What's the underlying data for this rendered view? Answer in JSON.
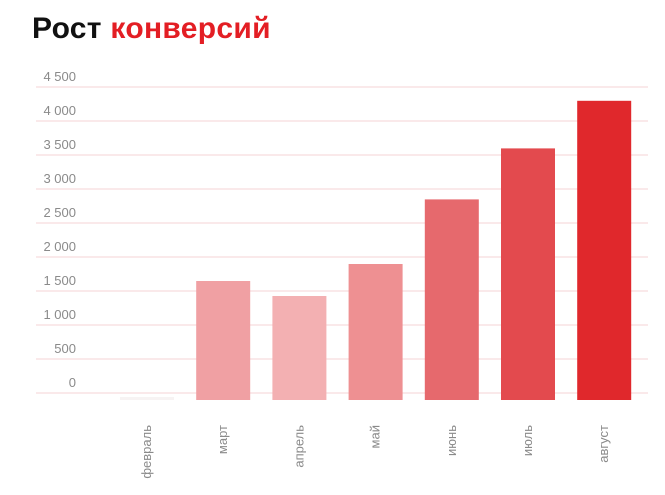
{
  "title": {
    "prefix": "Рост",
    "accent": "конверсий"
  },
  "colors": {
    "accent": "#e31e24",
    "grid": "#f6d3d5",
    "tick": "#8a8a8a"
  },
  "chart_data": {
    "type": "bar",
    "title": "Рост конверсий",
    "categories": [
      "февраль",
      "март",
      "апрель",
      "май",
      "июнь",
      "июль",
      "август"
    ],
    "values": [
      30,
      1750,
      1530,
      2000,
      2950,
      3700,
      4400
    ],
    "bar_colors": [
      "#f7f3f3",
      "#f0a0a3",
      "#f3b0b2",
      "#ee9092",
      "#e6696d",
      "#e34a4e",
      "#e0282c"
    ],
    "ylim": [
      0,
      4500
    ],
    "yticks": [
      0,
      500,
      1000,
      1500,
      2000,
      2500,
      3000,
      3500,
      4000,
      4500
    ],
    "ytick_labels": [
      "0",
      "500",
      "1 000",
      "1 500",
      "2 000",
      "2 500",
      "3 000",
      "3 500",
      "4 000",
      "4 500"
    ],
    "grid": true,
    "xlabel": "",
    "ylabel": ""
  }
}
